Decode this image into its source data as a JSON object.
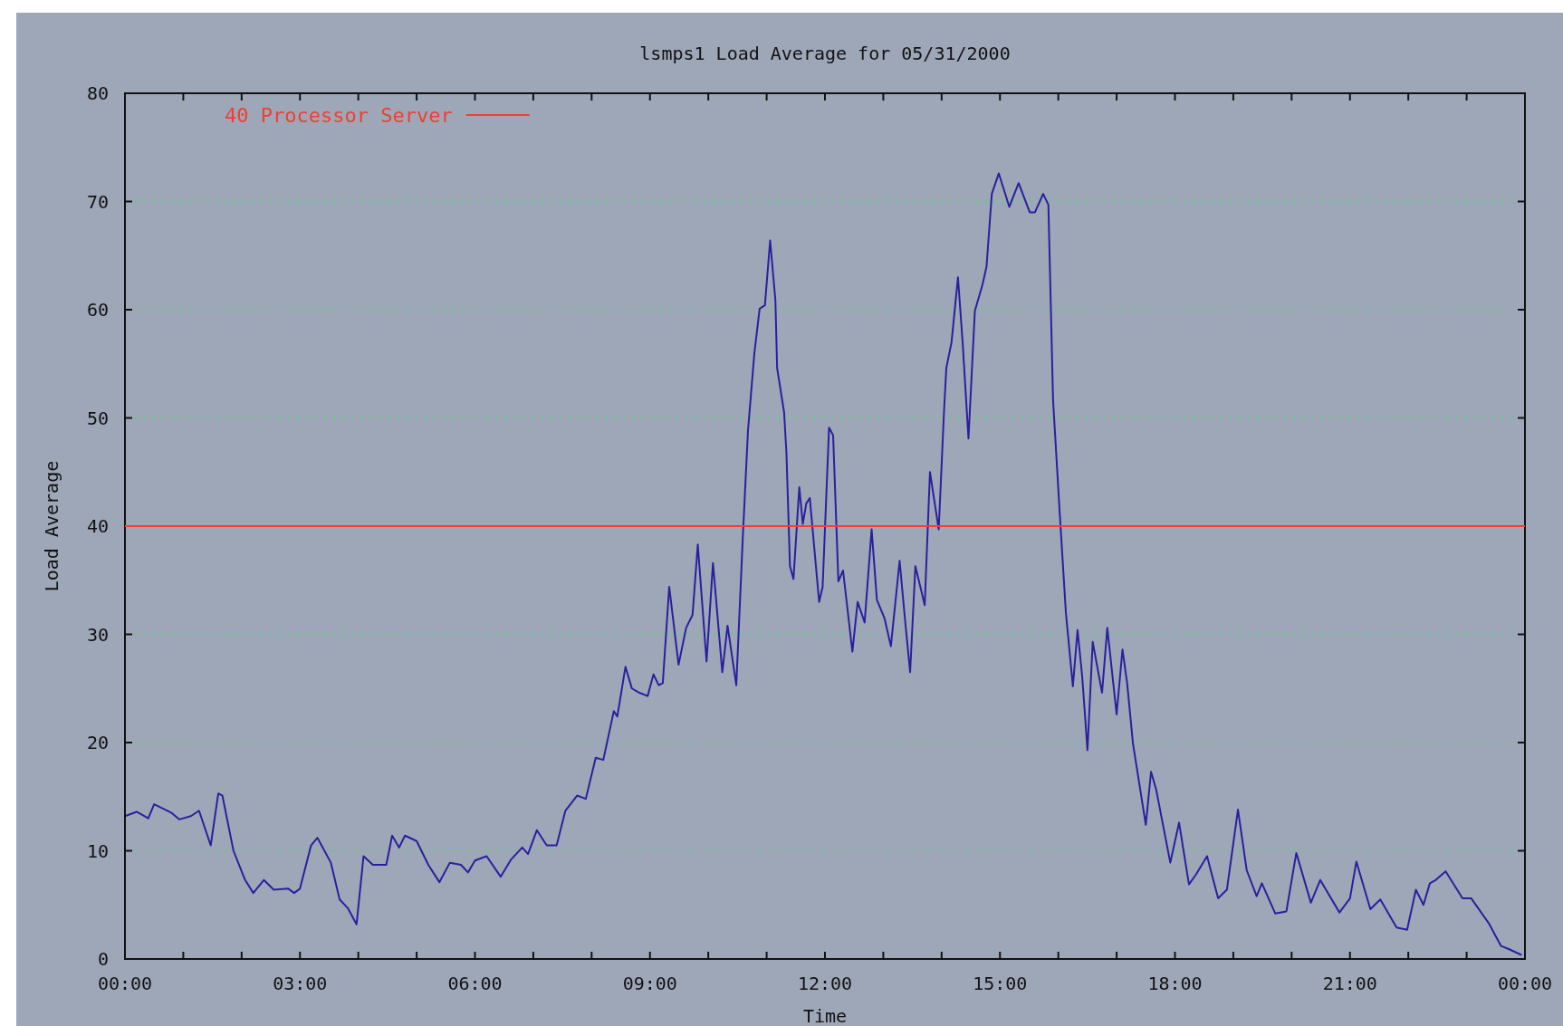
{
  "chart_data": {
    "type": "line",
    "title": "lsmps1 Load Average for 05/31/2000",
    "xlabel": "Time",
    "ylabel": "Load Average",
    "xlim": [
      0,
      24
    ],
    "xticks": [
      {
        "value": 0,
        "label": "00:00"
      },
      {
        "value": 1,
        "label": null
      },
      {
        "value": 2,
        "label": null
      },
      {
        "value": 3,
        "label": "03:00"
      },
      {
        "value": 4,
        "label": null
      },
      {
        "value": 5,
        "label": null
      },
      {
        "value": 6,
        "label": "06:00"
      },
      {
        "value": 7,
        "label": null
      },
      {
        "value": 8,
        "label": null
      },
      {
        "value": 9,
        "label": "09:00"
      },
      {
        "value": 10,
        "label": null
      },
      {
        "value": 11,
        "label": null
      },
      {
        "value": 12,
        "label": "12:00"
      },
      {
        "value": 13,
        "label": null
      },
      {
        "value": 14,
        "label": null
      },
      {
        "value": 15,
        "label": "15:00"
      },
      {
        "value": 16,
        "label": null
      },
      {
        "value": 17,
        "label": null
      },
      {
        "value": 18,
        "label": "18:00"
      },
      {
        "value": 19,
        "label": null
      },
      {
        "value": 20,
        "label": null
      },
      {
        "value": 21,
        "label": "21:00"
      },
      {
        "value": 22,
        "label": null
      },
      {
        "value": 23,
        "label": null
      },
      {
        "value": 24,
        "label": "00:00"
      }
    ],
    "ylim": [
      0,
      80
    ],
    "yticks": [
      0,
      10,
      20,
      30,
      40,
      50,
      60,
      70,
      80
    ],
    "grid": "y",
    "ref_lines": [
      {
        "axis": "y",
        "value": 40,
        "label": "40 Processor Server",
        "color": "#f04030",
        "line_style": "solid"
      }
    ],
    "line_style": "solid",
    "marker": "none",
    "series": [
      {
        "color": "#2b1f9e",
        "x": [
          0,
          0.2,
          0.4,
          0.5,
          0.8,
          0.93,
          1.13,
          1.27,
          1.47,
          1.6,
          1.67,
          1.86,
          2.06,
          2.2,
          2.38,
          2.55,
          2.8,
          2.9,
          3,
          3.19,
          3.3,
          3.53,
          3.68,
          3.82,
          3.97,
          4.09,
          4.25,
          4.48,
          4.58,
          4.7,
          4.8,
          5,
          5.2,
          5.39,
          5.57,
          5.76,
          5.88,
          6,
          6.2,
          6.44,
          6.62,
          6.81,
          6.91,
          7.06,
          7.23,
          7.4,
          7.55,
          7.75,
          7.9,
          8.07,
          8.2,
          8.38,
          8.44,
          8.58,
          8.69,
          8.82,
          8.96,
          9.06,
          9.15,
          9.22,
          9.33,
          9.49,
          9.62,
          9.73,
          9.82,
          9.97,
          10.08,
          10.24,
          10.33,
          10.48,
          10.59,
          10.68,
          10.79,
          10.88,
          10.97,
          11.06,
          11.15,
          11.18,
          11.3,
          11.34,
          11.4,
          11.46,
          11.56,
          11.62,
          11.68,
          11.74,
          11.9,
          11.96,
          12.07,
          12.14,
          12.23,
          12.31,
          12.47,
          12.56,
          12.68,
          12.8,
          12.89,
          13.02,
          13.13,
          13.28,
          13.37,
          13.46,
          13.55,
          13.71,
          13.8,
          13.95,
          14.04,
          14.08,
          14.17,
          14.28,
          14.36,
          14.46,
          14.57,
          14.7,
          14.77,
          14.86,
          14.98,
          15.16,
          15.32,
          15.51,
          15.6,
          15.74,
          15.83,
          15.91,
          16.02,
          16.13,
          16.25,
          16.33,
          16.41,
          16.5,
          16.59,
          16.75,
          16.84,
          17,
          17.1,
          17.18,
          17.28,
          17.5,
          17.59,
          17.68,
          17.92,
          18.07,
          18.24,
          18.36,
          18.55,
          18.74,
          18.89,
          19.08,
          19.23,
          19.4,
          19.49,
          19.72,
          19.91,
          20.08,
          20.33,
          20.49,
          20.82,
          21,
          21.11,
          21.35,
          21.52,
          21.8,
          21.98,
          22.13,
          22.26,
          22.37,
          22.47,
          22.64,
          22.93,
          23.08,
          23.38,
          23.59,
          23.73,
          23.93
        ],
        "values": [
          13.2,
          13.6,
          13,
          14.3,
          13.5,
          12.9,
          13.2,
          13.7,
          10.5,
          15.3,
          15.1,
          10,
          7.3,
          6.1,
          7.3,
          6.4,
          6.5,
          6.1,
          6.5,
          10.5,
          11.2,
          8.9,
          5.5,
          4.7,
          3.2,
          9.5,
          8.7,
          8.7,
          11.4,
          10.3,
          11.4,
          10.9,
          8.7,
          7.1,
          8.9,
          8.7,
          8,
          9.1,
          9.5,
          7.6,
          9.2,
          10.3,
          9.7,
          11.9,
          10.5,
          10.5,
          13.7,
          15.1,
          14.8,
          18.6,
          18.4,
          22.9,
          22.4,
          27,
          25,
          24.6,
          24.3,
          26.3,
          25.3,
          25.5,
          34.4,
          27.2,
          30.6,
          31.8,
          38.3,
          27.5,
          36.6,
          26.5,
          30.8,
          25.3,
          38.8,
          48.8,
          56,
          60.1,
          60.4,
          66.4,
          60.9,
          54.6,
          50.5,
          46.7,
          36.3,
          35.1,
          43.6,
          40.2,
          42.1,
          42.6,
          33,
          34.4,
          49.1,
          48.4,
          34.9,
          35.9,
          28.4,
          33,
          31.1,
          39.7,
          33.2,
          31.5,
          28.9,
          36.8,
          31.5,
          26.5,
          36.3,
          32.7,
          45,
          39.7,
          50.5,
          54.6,
          57,
          63,
          57,
          48.1,
          59.9,
          62.3,
          64,
          70.7,
          72.6,
          69.5,
          71.7,
          69,
          69,
          70.7,
          69.7,
          51.7,
          41.6,
          32,
          25.2,
          30.4,
          26.1,
          19.3,
          29.3,
          24.6,
          30.6,
          22.6,
          28.6,
          25.5,
          19.9,
          12.4,
          17.3,
          15.6,
          8.9,
          12.6,
          6.9,
          7.8,
          9.5,
          5.6,
          6.4,
          13.8,
          8.2,
          5.8,
          7,
          4.2,
          4.4,
          9.8,
          5.2,
          7.3,
          4.3,
          5.6,
          9,
          4.6,
          5.5,
          2.9,
          2.7,
          6.4,
          5,
          7,
          7.3,
          8.1,
          5.6,
          5.6,
          3.3,
          1.2,
          0.9,
          0.4
        ]
      }
    ]
  }
}
